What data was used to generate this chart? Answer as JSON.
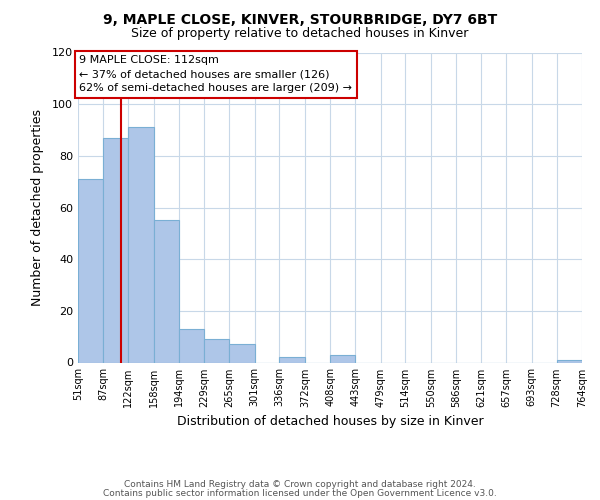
{
  "title": "9, MAPLE CLOSE, KINVER, STOURBRIDGE, DY7 6BT",
  "subtitle": "Size of property relative to detached houses in Kinver",
  "xlabel": "Distribution of detached houses by size in Kinver",
  "ylabel": "Number of detached properties",
  "bin_edges": [
    51,
    87,
    122,
    158,
    194,
    229,
    265,
    301,
    336,
    372,
    408,
    443,
    479,
    514,
    550,
    586,
    621,
    657,
    693,
    728,
    764
  ],
  "bar_heights": [
    71,
    87,
    91,
    55,
    13,
    9,
    7,
    0,
    2,
    0,
    3,
    0,
    0,
    0,
    0,
    0,
    0,
    0,
    0,
    1
  ],
  "bar_color": "#aec6e8",
  "bar_edgecolor": "#7aafd4",
  "property_line_x": 112,
  "property_line_color": "#cc0000",
  "ylim": [
    0,
    120
  ],
  "yticks": [
    0,
    20,
    40,
    60,
    80,
    100,
    120
  ],
  "annotation_line1": "9 MAPLE CLOSE: 112sqm",
  "annotation_line2": "← 37% of detached houses are smaller (126)",
  "annotation_line3": "62% of semi-detached houses are larger (209) →",
  "annotation_box_color": "#cc0000",
  "footer_line1": "Contains HM Land Registry data © Crown copyright and database right 2024.",
  "footer_line2": "Contains public sector information licensed under the Open Government Licence v3.0.",
  "background_color": "#ffffff",
  "grid_color": "#c8d8e8"
}
